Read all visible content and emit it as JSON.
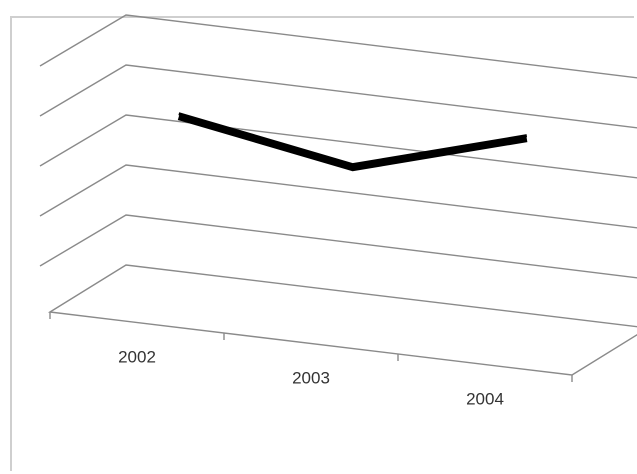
{
  "chart_data": {
    "type": "line",
    "style": "3d-perspective",
    "title": "",
    "xlabel": "",
    "ylabel": "",
    "categories": [
      "2002",
      "2003",
      "2004"
    ],
    "series": [
      {
        "values": [
          3.6,
          3.0,
          4.0
        ],
        "color": "#000000"
      }
    ],
    "ylim": [
      0,
      5
    ],
    "gridlines": 5,
    "grid": true,
    "legend": "none"
  }
}
